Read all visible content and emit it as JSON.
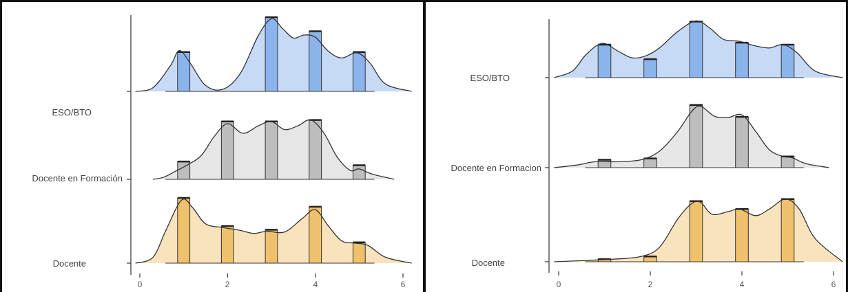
{
  "chart_data": [
    {
      "type": "ridgeline",
      "title": "",
      "xlabel": "",
      "ylabel": "",
      "xlim": [
        0,
        6
      ],
      "x_ticks": [
        0,
        2,
        4,
        6
      ],
      "x_tick_labels": [
        "0",
        "2",
        "4",
        "6"
      ],
      "grid": false,
      "legend": "none",
      "categories": [
        "Docente",
        "Docente en Formación",
        "ESO/BTO"
      ],
      "series": [
        {
          "name": "ESO/BTO",
          "color": "#c6d9f5",
          "bar_color": "#8cb4ec",
          "bar_values": {
            "1": 0.53,
            "2": 0.0,
            "3": 1.0,
            "4": 0.81,
            "5": 0.53
          },
          "density": [
            [
              -0.1,
              0.0
            ],
            [
              0.3,
              0.05
            ],
            [
              0.7,
              0.35
            ],
            [
              0.9,
              0.55
            ],
            [
              1.15,
              0.38
            ],
            [
              1.5,
              0.08
            ],
            [
              1.9,
              0.03
            ],
            [
              2.3,
              0.25
            ],
            [
              2.7,
              0.75
            ],
            [
              3.0,
              0.98
            ],
            [
              3.25,
              0.85
            ],
            [
              3.5,
              0.72
            ],
            [
              3.75,
              0.76
            ],
            [
              4.0,
              0.73
            ],
            [
              4.3,
              0.54
            ],
            [
              4.6,
              0.45
            ],
            [
              4.95,
              0.52
            ],
            [
              5.25,
              0.38
            ],
            [
              5.6,
              0.1
            ],
            [
              6.2,
              0.0
            ]
          ]
        },
        {
          "name": "Docente en Formación",
          "color": "#e6e6e6",
          "bar_color": "#bdbdbd",
          "bar_values": {
            "1": 0.24,
            "2": 0.78,
            "3": 0.78,
            "4": 0.8,
            "5": 0.19
          },
          "density": [
            [
              0.3,
              0.0
            ],
            [
              0.55,
              0.03
            ],
            [
              0.85,
              0.12
            ],
            [
              1.1,
              0.2
            ],
            [
              1.4,
              0.32
            ],
            [
              1.7,
              0.58
            ],
            [
              2.0,
              0.75
            ],
            [
              2.35,
              0.62
            ],
            [
              2.7,
              0.72
            ],
            [
              3.0,
              0.78
            ],
            [
              3.3,
              0.67
            ],
            [
              3.6,
              0.72
            ],
            [
              3.9,
              0.8
            ],
            [
              4.2,
              0.62
            ],
            [
              4.5,
              0.3
            ],
            [
              4.8,
              0.12
            ],
            [
              5.0,
              0.14
            ],
            [
              5.3,
              0.07
            ],
            [
              5.8,
              0.0
            ]
          ]
        },
        {
          "name": "Docente",
          "color": "#f9e3bd",
          "bar_color": "#f0c16c",
          "bar_values": {
            "1": 0.88,
            "2": 0.5,
            "3": 0.45,
            "4": 0.76,
            "5": 0.28
          },
          "density": [
            [
              -0.1,
              0.0
            ],
            [
              0.3,
              0.08
            ],
            [
              0.6,
              0.45
            ],
            [
              0.95,
              0.85
            ],
            [
              1.2,
              0.75
            ],
            [
              1.5,
              0.53
            ],
            [
              1.9,
              0.48
            ],
            [
              2.3,
              0.44
            ],
            [
              2.6,
              0.4
            ],
            [
              2.9,
              0.43
            ],
            [
              3.3,
              0.42
            ],
            [
              3.7,
              0.6
            ],
            [
              4.0,
              0.72
            ],
            [
              4.3,
              0.5
            ],
            [
              4.6,
              0.3
            ],
            [
              4.9,
              0.27
            ],
            [
              5.2,
              0.24
            ],
            [
              5.6,
              0.08
            ],
            [
              6.2,
              0.0
            ]
          ]
        }
      ]
    },
    {
      "type": "ridgeline",
      "title": "",
      "xlabel": "",
      "ylabel": "",
      "xlim": [
        0,
        6
      ],
      "x_ticks": [
        0,
        2,
        4,
        6
      ],
      "x_tick_labels": [
        "0",
        "2",
        "4",
        "6"
      ],
      "grid": false,
      "legend": "none",
      "categories": [
        "Docente",
        "Docente en Formacion",
        "ESO/BTO"
      ],
      "series": [
        {
          "name": "ESO/BTO",
          "color": "#c6d9f5",
          "bar_color": "#8cb4ec",
          "bar_values": {
            "1": 0.5,
            "2": 0.28,
            "3": 0.85,
            "4": 0.53,
            "5": 0.5
          },
          "density": [
            [
              -0.1,
              0.0
            ],
            [
              0.3,
              0.1
            ],
            [
              0.6,
              0.35
            ],
            [
              0.95,
              0.52
            ],
            [
              1.3,
              0.4
            ],
            [
              1.6,
              0.3
            ],
            [
              1.9,
              0.33
            ],
            [
              2.2,
              0.45
            ],
            [
              2.6,
              0.7
            ],
            [
              3.0,
              0.86
            ],
            [
              3.3,
              0.75
            ],
            [
              3.6,
              0.58
            ],
            [
              3.95,
              0.55
            ],
            [
              4.3,
              0.48
            ],
            [
              4.6,
              0.45
            ],
            [
              4.9,
              0.5
            ],
            [
              5.2,
              0.38
            ],
            [
              5.6,
              0.1
            ],
            [
              6.2,
              0.0
            ]
          ]
        },
        {
          "name": "Docente en Formacion",
          "color": "#e6e6e6",
          "bar_color": "#bdbdbd",
          "bar_values": {
            "1": 0.12,
            "2": 0.14,
            "3": 0.95,
            "4": 0.77,
            "5": 0.17
          },
          "density": [
            [
              -0.1,
              0.0
            ],
            [
              0.4,
              0.04
            ],
            [
              0.8,
              0.09
            ],
            [
              1.3,
              0.09
            ],
            [
              1.8,
              0.12
            ],
            [
              2.2,
              0.25
            ],
            [
              2.6,
              0.55
            ],
            [
              2.9,
              0.85
            ],
            [
              3.1,
              0.93
            ],
            [
              3.4,
              0.78
            ],
            [
              3.7,
              0.76
            ],
            [
              4.0,
              0.8
            ],
            [
              4.3,
              0.55
            ],
            [
              4.6,
              0.27
            ],
            [
              4.9,
              0.17
            ],
            [
              5.1,
              0.15
            ],
            [
              5.4,
              0.06
            ],
            [
              5.9,
              0.0
            ]
          ]
        },
        {
          "name": "Docente",
          "color": "#f9e3bd",
          "bar_color": "#f0c16c",
          "bar_values": {
            "1": 0.04,
            "2": 0.08,
            "3": 0.92,
            "4": 0.8,
            "5": 0.95
          },
          "density": [
            [
              -0.1,
              0.0
            ],
            [
              0.6,
              0.02
            ],
            [
              1.2,
              0.04
            ],
            [
              1.8,
              0.08
            ],
            [
              2.2,
              0.22
            ],
            [
              2.6,
              0.65
            ],
            [
              2.9,
              0.88
            ],
            [
              3.1,
              0.9
            ],
            [
              3.35,
              0.72
            ],
            [
              3.7,
              0.76
            ],
            [
              3.95,
              0.8
            ],
            [
              4.3,
              0.7
            ],
            [
              4.6,
              0.8
            ],
            [
              4.95,
              0.95
            ],
            [
              5.25,
              0.8
            ],
            [
              5.6,
              0.35
            ],
            [
              6.2,
              0.0
            ]
          ]
        }
      ]
    }
  ]
}
